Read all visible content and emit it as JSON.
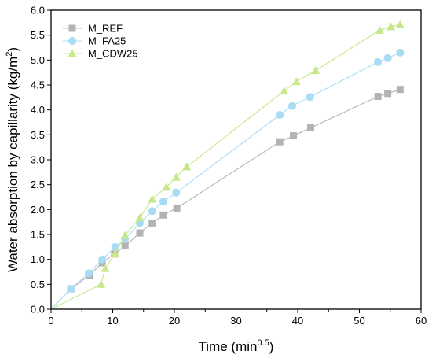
{
  "chart_data": {
    "type": "scatter",
    "xlabel": "Time (min",
    "xlabel_sup": "0.5",
    "xlabel_end": ")",
    "ylabel": "Water absorption by capillarity (kg/m",
    "ylabel_sup": "2",
    "ylabel_end": ")",
    "xlim": [
      0,
      60
    ],
    "ylim": [
      0,
      6.0
    ],
    "xticks": [
      "0",
      "10",
      "20",
      "30",
      "40",
      "50",
      "60"
    ],
    "yticks": [
      "0.0",
      "0.5",
      "1.0",
      "1.5",
      "2.0",
      "2.5",
      "3.0",
      "3.5",
      "4.0",
      "4.5",
      "5.0",
      "5.5",
      "6.0"
    ],
    "grid": false,
    "legend_position": "top-left",
    "series": [
      {
        "name": "M_REF",
        "marker": "square",
        "color": "#b3b3b3",
        "x": [
          0,
          3.2,
          6.2,
          8.3,
          10.3,
          12.0,
          14.4,
          16.4,
          18.2,
          20.4,
          37.1,
          39.3,
          42.1,
          53.0,
          54.6,
          56.6
        ],
        "y": [
          0.0,
          0.41,
          0.68,
          0.93,
          1.11,
          1.27,
          1.53,
          1.73,
          1.89,
          2.03,
          3.36,
          3.48,
          3.64,
          4.27,
          4.33,
          4.41
        ]
      },
      {
        "name": "M_FA25",
        "marker": "circle",
        "color": "#a8dcf5",
        "x": [
          0,
          3.2,
          6.1,
          8.3,
          10.4,
          12.0,
          14.4,
          16.4,
          18.2,
          20.3,
          37.1,
          39.1,
          42.0,
          53.0,
          54.6,
          56.6
        ],
        "y": [
          0.0,
          0.41,
          0.72,
          1.0,
          1.25,
          1.41,
          1.73,
          1.97,
          2.16,
          2.34,
          3.9,
          4.08,
          4.26,
          4.96,
          5.04,
          5.15
        ]
      },
      {
        "name": "M_CDW25",
        "marker": "triangle",
        "color": "#c6e88a",
        "x": [
          0,
          8.1,
          8.8,
          10.4,
          12.0,
          14.4,
          16.4,
          18.7,
          20.3,
          22.0,
          37.8,
          39.8,
          42.9,
          53.3,
          55.1,
          56.6
        ],
        "y": [
          0.0,
          0.5,
          0.82,
          1.12,
          1.48,
          1.84,
          2.21,
          2.45,
          2.65,
          2.86,
          4.38,
          4.57,
          4.79,
          5.6,
          5.67,
          5.71
        ]
      }
    ]
  }
}
